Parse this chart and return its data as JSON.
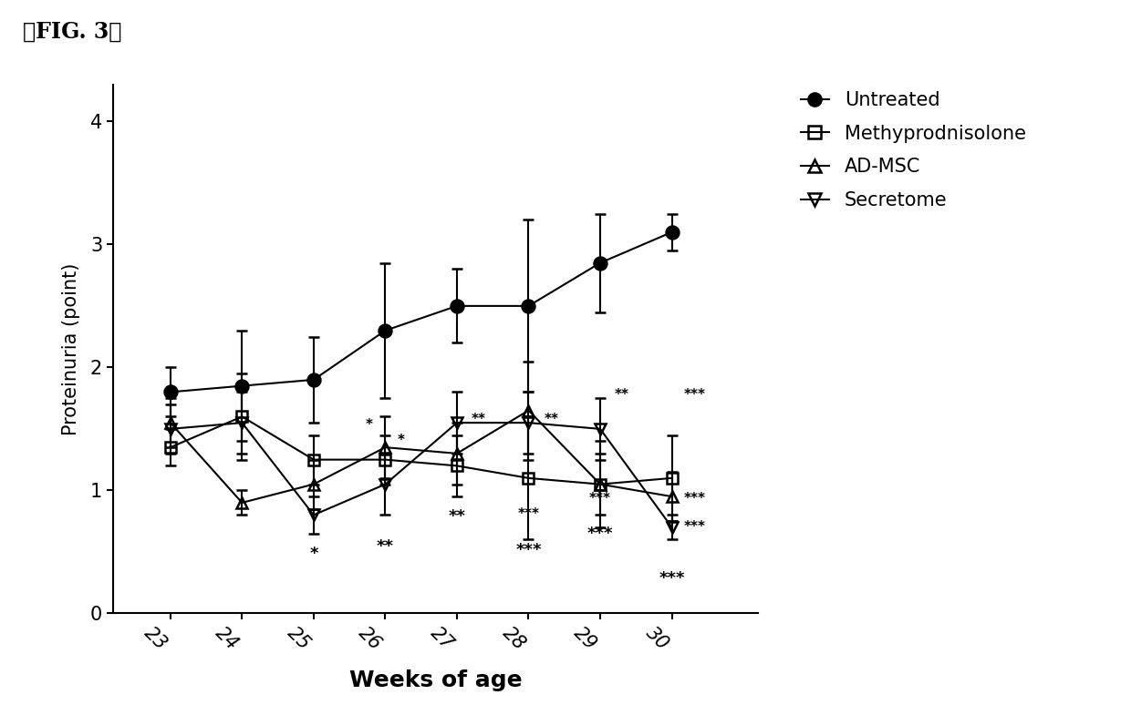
{
  "title": "【FIG. 3】",
  "xlabel": "Weeks of age",
  "ylabel": "Proteinuria (point)",
  "weeks": [
    23,
    24,
    25,
    26,
    27,
    28,
    29,
    30
  ],
  "untreated": {
    "mean": [
      1.8,
      1.85,
      1.9,
      2.3,
      2.5,
      2.5,
      2.85,
      3.1
    ],
    "err": [
      0.2,
      0.45,
      0.35,
      0.55,
      0.3,
      0.7,
      0.4,
      0.15
    ],
    "label": "Untreated",
    "color": "#000000",
    "marker": "o",
    "markersize": 10,
    "fillstyle": "full"
  },
  "methyl": {
    "mean": [
      1.35,
      1.6,
      1.25,
      1.25,
      1.2,
      1.1,
      1.05,
      1.1
    ],
    "err": [
      0.15,
      0.35,
      0.2,
      0.2,
      0.25,
      0.5,
      0.35,
      0.35
    ],
    "label": "Methyprodnisolone",
    "color": "#000000",
    "marker": "s",
    "markersize": 9,
    "fillstyle": "none"
  },
  "admsc": {
    "mean": [
      1.55,
      0.9,
      1.05,
      1.35,
      1.3,
      1.65,
      1.05,
      0.95
    ],
    "err": [
      0.2,
      0.1,
      0.2,
      0.25,
      0.25,
      0.4,
      0.25,
      0.2
    ],
    "label": "AD-MSC",
    "color": "#000000",
    "marker": "^",
    "markersize": 9,
    "fillstyle": "none"
  },
  "secretome": {
    "mean": [
      1.5,
      1.55,
      0.8,
      1.05,
      1.55,
      1.55,
      1.5,
      0.7
    ],
    "err": [
      0.2,
      0.25,
      0.15,
      0.25,
      0.25,
      0.25,
      0.25,
      0.1
    ],
    "label": "Secretome",
    "color": "#000000",
    "marker": "v",
    "markersize": 9,
    "fillstyle": "none"
  },
  "ylim": [
    0,
    4.3
  ],
  "yticks": [
    0,
    1,
    2,
    3,
    4
  ],
  "xlim": [
    22.2,
    31.2
  ],
  "background_color": "#ffffff",
  "fig_bg_color": "#ffffff",
  "tick_rotation": -45
}
